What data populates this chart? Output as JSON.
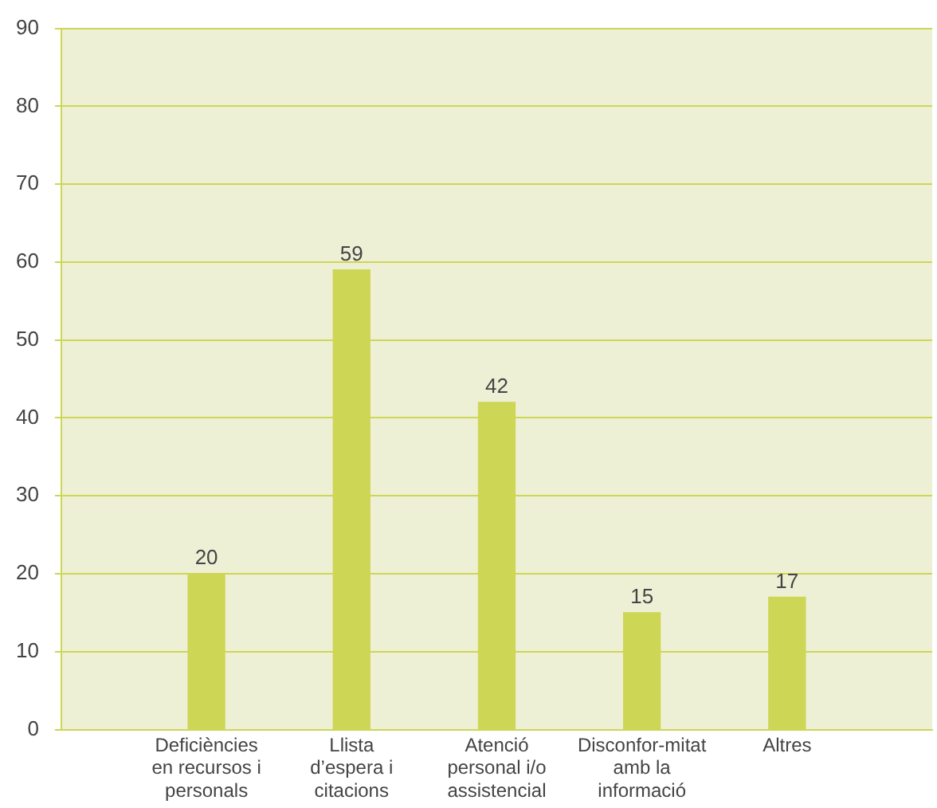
{
  "chart_data": {
    "type": "bar",
    "categories": [
      "Deficiències en recursos i personals",
      "Llista d’espera i citacions",
      "Atenció personal i/o assistencial",
      "Disconfor-mitat amb la informació",
      "Altres"
    ],
    "values": [
      20,
      59,
      42,
      15,
      17
    ],
    "color": "#cdd655",
    "ylim": [
      0,
      90
    ],
    "yticks": [
      0,
      10,
      20,
      30,
      40,
      50,
      60,
      70,
      80,
      90
    ],
    "grid": "y",
    "data_labels": true
  }
}
